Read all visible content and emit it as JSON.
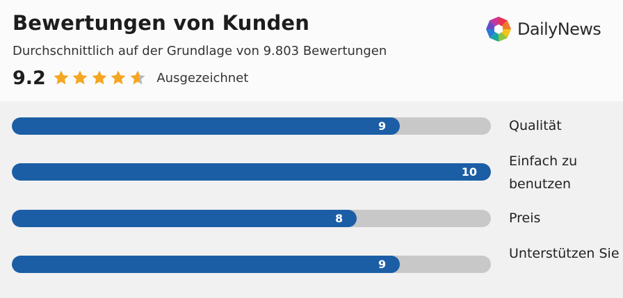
{
  "header": {
    "title": "Bewertungen von Kunden",
    "subtitle": "Durchschnittlich auf der Grundlage von 9.803 Bewertungen",
    "score": "9.2",
    "stars": {
      "rating": 4.6,
      "max": 5,
      "filled_color": "#f5a623",
      "empty_color": "#b8b8b8"
    },
    "verdict": "Ausgezeichnet"
  },
  "logo": {
    "brand": "DailyNews",
    "icon": "aperture-logo-icon"
  },
  "bars": [
    {
      "label": "Qualität",
      "value": 9,
      "max": 10
    },
    {
      "label": "Einfach zu benutzen",
      "value": 10,
      "max": 10
    },
    {
      "label": "Preis",
      "value": 8,
      "max": 10
    },
    {
      "label": "Unterstützen Sie",
      "value": 9,
      "max": 10
    }
  ],
  "colors": {
    "bar_fill": "#1b5ea6",
    "bar_track": "#c8c8c8",
    "panel_bg": "#f1f1f1",
    "header_bg": "#fbfbfb"
  }
}
